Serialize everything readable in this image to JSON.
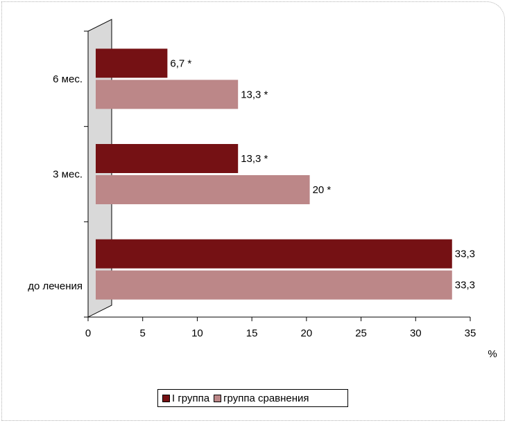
{
  "chart_data": {
    "type": "bar",
    "orientation": "horizontal",
    "categories": [
      "6 мес.",
      "3 мес.",
      "до лечения"
    ],
    "series": [
      {
        "name": "I группа",
        "color": "#751114",
        "values": [
          6.7,
          13.3,
          33.3
        ],
        "labels": [
          "6,7 *",
          "13,3 *",
          "33,3"
        ]
      },
      {
        "name": "группа сравнения",
        "color": "#bc8788",
        "values": [
          13.3,
          20,
          33.3
        ],
        "labels": [
          "13,3 *",
          "20 *",
          "33,3"
        ]
      }
    ],
    "xlim": [
      0,
      35
    ],
    "xticks": [
      "0",
      "5",
      "10",
      "15",
      "20",
      "25",
      "30",
      "35"
    ],
    "xlabel": "%",
    "ylabel": "",
    "title": "",
    "legend_position": "bottom",
    "grid": false
  }
}
